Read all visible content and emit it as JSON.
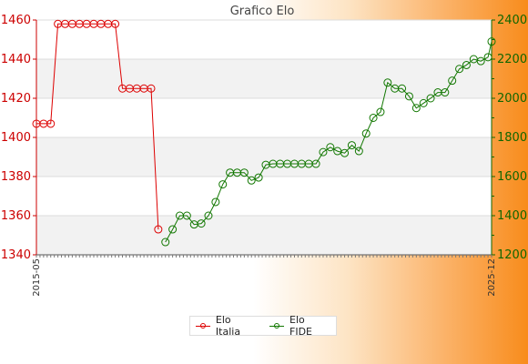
{
  "chart_data": {
    "type": "line",
    "title": "Grafico Elo",
    "xlabel": "",
    "ylabel": "",
    "grid": true,
    "legend_position": "bottom-center",
    "ylim_left": [
      1340,
      1460
    ],
    "ylim_right": [
      1200,
      2400
    ],
    "yticks_left": [
      1340,
      1360,
      1380,
      1400,
      1420,
      1440,
      1460
    ],
    "yticks_right": [
      1200,
      1400,
      1600,
      1800,
      2000,
      2200,
      2400
    ],
    "x_start_label": "2015-05",
    "x_end_label": "2025-12",
    "x_range": [
      "2015-05",
      "2025-12"
    ],
    "series": [
      {
        "name": "Elo Italia",
        "axis": "left",
        "color": "#dd0000",
        "x": [
          "2015-05",
          "2015-07",
          "2015-09",
          "2015-11",
          "2016-01",
          "2016-03",
          "2016-05",
          "2016-07",
          "2016-09",
          "2016-11",
          "2017-01",
          "2017-03",
          "2017-05",
          "2017-07",
          "2017-09",
          "2017-11",
          "2018-01",
          "2018-03"
        ],
        "values": [
          1407,
          1407,
          1407,
          1458,
          1458,
          1458,
          1458,
          1458,
          1458,
          1458,
          1458,
          1458,
          1425,
          1425,
          1425,
          1425,
          1425,
          1353
        ]
      },
      {
        "name": "Elo FIDE",
        "axis": "right",
        "color": "#117700",
        "x": [
          "2018-05",
          "2018-07",
          "2018-09",
          "2018-11",
          "2019-01",
          "2019-03",
          "2019-05",
          "2019-07",
          "2019-09",
          "2019-11",
          "2020-01",
          "2020-03",
          "2020-05",
          "2020-07",
          "2020-09",
          "2020-11",
          "2021-01",
          "2021-03",
          "2021-05",
          "2021-07",
          "2021-09",
          "2021-11",
          "2022-01",
          "2022-03",
          "2022-05",
          "2022-07",
          "2022-09",
          "2022-11",
          "2023-01",
          "2023-03",
          "2023-05",
          "2023-07",
          "2023-09",
          "2023-11",
          "2024-01",
          "2024-03",
          "2024-05",
          "2024-07",
          "2024-09",
          "2024-11",
          "2025-01",
          "2025-03",
          "2025-05",
          "2025-07",
          "2025-09",
          "2025-11",
          "2025-12"
        ],
        "values": [
          1265,
          1330,
          1400,
          1400,
          1355,
          1360,
          1400,
          1470,
          1560,
          1620,
          1620,
          1620,
          1580,
          1595,
          1660,
          1665,
          1665,
          1665,
          1665,
          1665,
          1665,
          1665,
          1725,
          1750,
          1730,
          1720,
          1760,
          1730,
          1820,
          1900,
          1930,
          2080,
          2050,
          2050,
          2010,
          1950,
          1975,
          2000,
          2030,
          2030,
          2090,
          2150,
          2170,
          2200,
          2190,
          2210,
          2290
        ]
      }
    ]
  }
}
